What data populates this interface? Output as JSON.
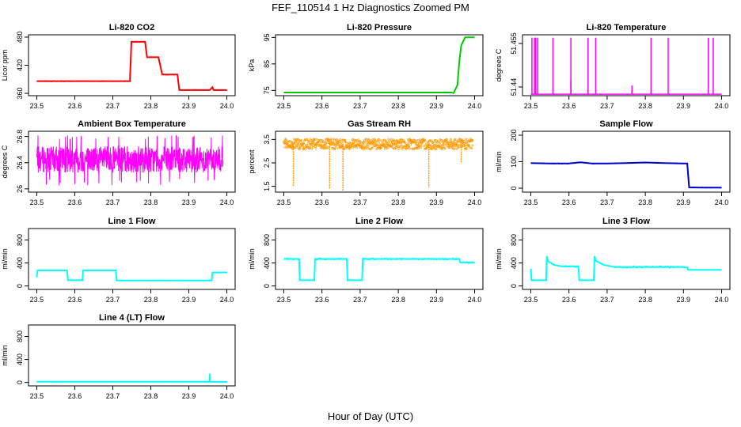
{
  "figure": {
    "title": "FEF_110514  1 Hz Diagnostics Zoomed PM",
    "xlabel": "Hour of Day (UTC)"
  },
  "chart_data": [
    {
      "type": "line",
      "title": "Li-820 CO2",
      "ylabel": "Licor ppm",
      "color": "#ff0000",
      "xlim": [
        23.5,
        24.0
      ],
      "xticks": [
        "23.5",
        "23.6",
        "23.7",
        "23.8",
        "23.9",
        "24.0"
      ],
      "ylim": [
        355,
        485
      ],
      "yticks": [
        360,
        420,
        480
      ],
      "series": [
        {
          "x": [
            23.5,
            23.7,
            23.745,
            23.749,
            23.76,
            23.785,
            23.79,
            23.82,
            23.83,
            23.87,
            23.875,
            23.955,
            23.962,
            23.965,
            24.0
          ],
          "y": [
            386,
            386,
            386,
            470,
            470,
            470,
            437,
            437,
            400,
            400,
            367,
            367,
            373,
            367,
            367
          ]
        }
      ]
    },
    {
      "type": "line",
      "title": "Li-820 Pressure",
      "ylabel": "kPa",
      "color": "#00cc00",
      "xlim": [
        23.5,
        24.0
      ],
      "xticks": [
        "23.5",
        "23.6",
        "23.7",
        "23.8",
        "23.9",
        "24.0"
      ],
      "ylim": [
        73,
        96
      ],
      "yticks": [
        75,
        85,
        95
      ],
      "series": [
        {
          "x": [
            23.5,
            23.94,
            23.945,
            23.955,
            23.96,
            23.965,
            23.975,
            24.0
          ],
          "y": [
            74.2,
            74.2,
            74.0,
            77,
            86,
            92,
            95,
            95
          ]
        }
      ]
    },
    {
      "type": "line",
      "title": "Li-820 Temperature",
      "ylabel": "degrees C",
      "color": "#ff00ff",
      "xlim": [
        23.5,
        24.0
      ],
      "xticks": [
        "23.5",
        "23.6",
        "23.7",
        "23.8",
        "23.9",
        "24.0"
      ],
      "ylim": [
        51.437,
        51.458
      ],
      "yticks": [
        51.44,
        51.455
      ],
      "spikes": [
        23.503,
        23.51,
        23.513,
        23.518,
        23.558,
        23.605,
        23.605,
        23.65,
        23.67,
        23.765,
        23.815,
        23.86,
        23.965,
        23.978
      ],
      "base": 51.4375,
      "peak": 51.457
    },
    {
      "type": "line",
      "title": "Ambient Box Temperature",
      "ylabel": "degrees C",
      "color": "#ff00ff",
      "xlim": [
        23.5,
        24.0
      ],
      "xticks": [
        "23.5",
        "23.6",
        "23.7",
        "23.8",
        "23.9",
        "24.0"
      ],
      "ylim": [
        25.95,
        26.88
      ],
      "yticks": [
        26.0,
        26.4,
        26.8
      ],
      "noise": {
        "center": 26.45,
        "amplitude": 0.2,
        "spike_low": 26.05,
        "spike_high": 26.82
      }
    },
    {
      "type": "scatter",
      "title": "Gas Stream RH",
      "ylabel": "percent",
      "color": "#ff9900",
      "xlim": [
        23.5,
        24.0
      ],
      "xticks": [
        "23.5",
        "23.6",
        "23.7",
        "23.8",
        "23.9",
        "24.0"
      ],
      "ylim": [
        1.25,
        3.85
      ],
      "yticks": [
        1.5,
        2.5,
        3.5
      ],
      "noise": {
        "center": 3.3,
        "amplitude": 0.22
      },
      "dips": [
        {
          "x": 23.525,
          "y": 1.5
        },
        {
          "x": 23.62,
          "y": 1.4
        },
        {
          "x": 23.655,
          "y": 1.3
        },
        {
          "x": 23.88,
          "y": 1.45
        },
        {
          "x": 23.965,
          "y": 2.5
        }
      ]
    },
    {
      "type": "line",
      "title": "Sample Flow",
      "ylabel": "ml/min",
      "color": "#0000cc",
      "xlim": [
        23.5,
        24.0
      ],
      "xticks": [
        "23.5",
        "23.6",
        "23.7",
        "23.8",
        "23.9",
        "24.0"
      ],
      "ylim": [
        -15,
        215
      ],
      "yticks": [
        0,
        100,
        200
      ],
      "series": [
        {
          "x": [
            23.5,
            23.55,
            23.6,
            23.63,
            23.66,
            23.7,
            23.75,
            23.8,
            23.85,
            23.9,
            23.91,
            23.915,
            23.95,
            24.0
          ],
          "y": [
            95,
            93,
            93,
            98,
            93,
            93,
            95,
            97,
            95,
            93,
            93,
            3,
            2,
            2
          ]
        }
      ]
    },
    {
      "type": "line",
      "title": "Line 1 Flow",
      "ylabel": "ml/min",
      "color": "#00ffff",
      "xlim": [
        23.5,
        24.0
      ],
      "xticks": [
        "23.5",
        "23.6",
        "23.7",
        "23.8",
        "23.9",
        "24.0"
      ],
      "ylim": [
        -60,
        1000
      ],
      "yticks": [
        0,
        400,
        800
      ],
      "series": [
        {
          "x": [
            23.5,
            23.502,
            23.58,
            23.582,
            23.62,
            23.622,
            23.708,
            23.71,
            23.96,
            23.962,
            24.0
          ],
          "y": [
            150,
            270,
            270,
            100,
            100,
            270,
            270,
            95,
            95,
            235,
            235
          ]
        }
      ]
    },
    {
      "type": "line",
      "title": "Line 2 Flow",
      "ylabel": "ml/min",
      "color": "#00ffff",
      "xlim": [
        23.5,
        24.0
      ],
      "xticks": [
        "23.5",
        "23.6",
        "23.7",
        "23.8",
        "23.9",
        "24.0"
      ],
      "ylim": [
        -60,
        1000
      ],
      "yticks": [
        0,
        400,
        800
      ],
      "series": [
        {
          "x": [
            23.5,
            23.54,
            23.542,
            23.58,
            23.582,
            23.665,
            23.667,
            23.705,
            23.707,
            23.96,
            23.962,
            24.0
          ],
          "y": [
            470,
            470,
            100,
            100,
            470,
            470,
            100,
            100,
            470,
            470,
            410,
            410
          ]
        }
      ]
    },
    {
      "type": "line",
      "title": "Line 3 Flow",
      "ylabel": "ml/min",
      "color": "#00ffff",
      "xlim": [
        23.5,
        24.0
      ],
      "xticks": [
        "23.5",
        "23.6",
        "23.7",
        "23.8",
        "23.9",
        "24.0"
      ],
      "ylim": [
        -60,
        1000
      ],
      "yticks": [
        0,
        400,
        800
      ],
      "series": [
        {
          "x": [
            23.5,
            23.502,
            23.54,
            23.542,
            23.545,
            23.56,
            23.58,
            23.625,
            23.627,
            23.665,
            23.667,
            23.67,
            23.69,
            23.72,
            23.9,
            23.91,
            23.912,
            24.0
          ],
          "y": [
            300,
            100,
            100,
            520,
            430,
            370,
            340,
            340,
            100,
            100,
            520,
            440,
            370,
            330,
            330,
            320,
            280,
            280
          ]
        }
      ]
    },
    {
      "type": "line",
      "title": "Line 4 (LT) Flow",
      "ylabel": "ml/min",
      "color": "#00ffff",
      "xlim": [
        23.5,
        24.0
      ],
      "xticks": [
        "23.5",
        "23.6",
        "23.7",
        "23.8",
        "23.9",
        "24.0"
      ],
      "ylim": [
        -60,
        1000
      ],
      "yticks": [
        0,
        400,
        800
      ],
      "series": [
        {
          "x": [
            23.5,
            23.954,
            23.955,
            23.956,
            23.957,
            24.0
          ],
          "y": [
            12,
            12,
            150,
            12,
            10,
            10
          ]
        }
      ]
    }
  ]
}
